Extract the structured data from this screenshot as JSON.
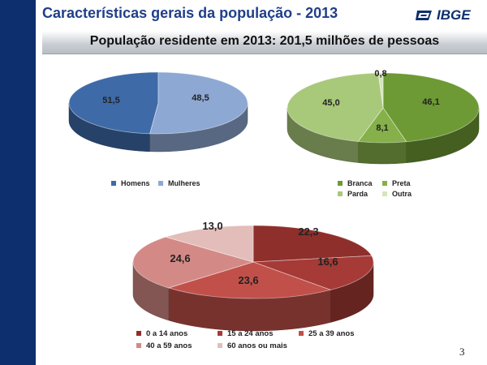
{
  "page": {
    "title": "Características gerais da população - 2013",
    "subtitle": "População residente em 2013: 201,5 milhões de pessoas",
    "logo": "IBGE",
    "page_number": "3"
  },
  "chart_data": [
    {
      "type": "pie",
      "title": "",
      "slices": [
        {
          "name": "Homens",
          "value": 48.5,
          "label": "48,5",
          "color": "#3e6aa8"
        },
        {
          "name": "Mulheres",
          "value": 51.5,
          "label": "51,5",
          "color": "#8ea8d4"
        }
      ],
      "legend": {
        "placement": "bottom",
        "items": [
          "Homens",
          "Mulheres"
        ]
      }
    },
    {
      "type": "pie",
      "title": "",
      "slices": [
        {
          "name": "Branca",
          "value": 46.1,
          "label": "46,1",
          "color": "#6d9a34"
        },
        {
          "name": "Preta",
          "value": 8.1,
          "label": "8,1",
          "color": "#85b04a"
        },
        {
          "name": "Parda",
          "value": 45.0,
          "label": "45,0",
          "color": "#a9c97a"
        },
        {
          "name": "Outra",
          "value": 0.8,
          "label": "0,8",
          "color": "#d4e5bc"
        }
      ],
      "legend": {
        "placement": "bottom",
        "items": [
          "Branca",
          "Preta",
          "Parda",
          "Outra"
        ]
      }
    },
    {
      "type": "pie",
      "title": "",
      "slices": [
        {
          "name": "0 a 14 anos",
          "value": 22.3,
          "label": "22,3",
          "color": "#8e2f2b"
        },
        {
          "name": "15 a 24 anos",
          "value": 16.6,
          "label": "16,6",
          "color": "#a53a36"
        },
        {
          "name": "25 a 39 anos",
          "value": 23.6,
          "label": "23,6",
          "color": "#c2504a"
        },
        {
          "name": "40 a 59 anos",
          "value": 24.6,
          "label": "24,6",
          "color": "#d38a86"
        },
        {
          "name": "60 anos ou mais",
          "value": 13.0,
          "label": "13,0",
          "color": "#e3bdba"
        }
      ],
      "legend": {
        "placement": "bottom",
        "items": [
          "0 a 14 anos",
          "15 a 24 anos",
          "25 a 39 anos",
          "40 a 59 anos",
          "60 anos ou mais"
        ]
      }
    }
  ]
}
